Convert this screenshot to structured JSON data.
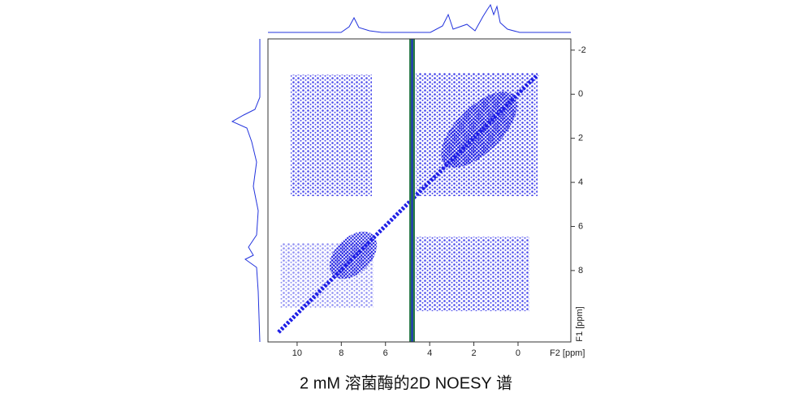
{
  "chart_data": {
    "type": "nmr2d",
    "caption": "2 mM 溶菌酶的2D NOESY 谱",
    "x_label": "F2 [ppm]",
    "y_label": "F1 [ppm]",
    "xlim": [
      11.32,
      -2.39
    ],
    "ylim": [
      -2.51,
      11.24
    ],
    "xticks": [
      10,
      8,
      6,
      4,
      2,
      0
    ],
    "yticks": [
      -2,
      0,
      2,
      4,
      6,
      8
    ]
  }
}
